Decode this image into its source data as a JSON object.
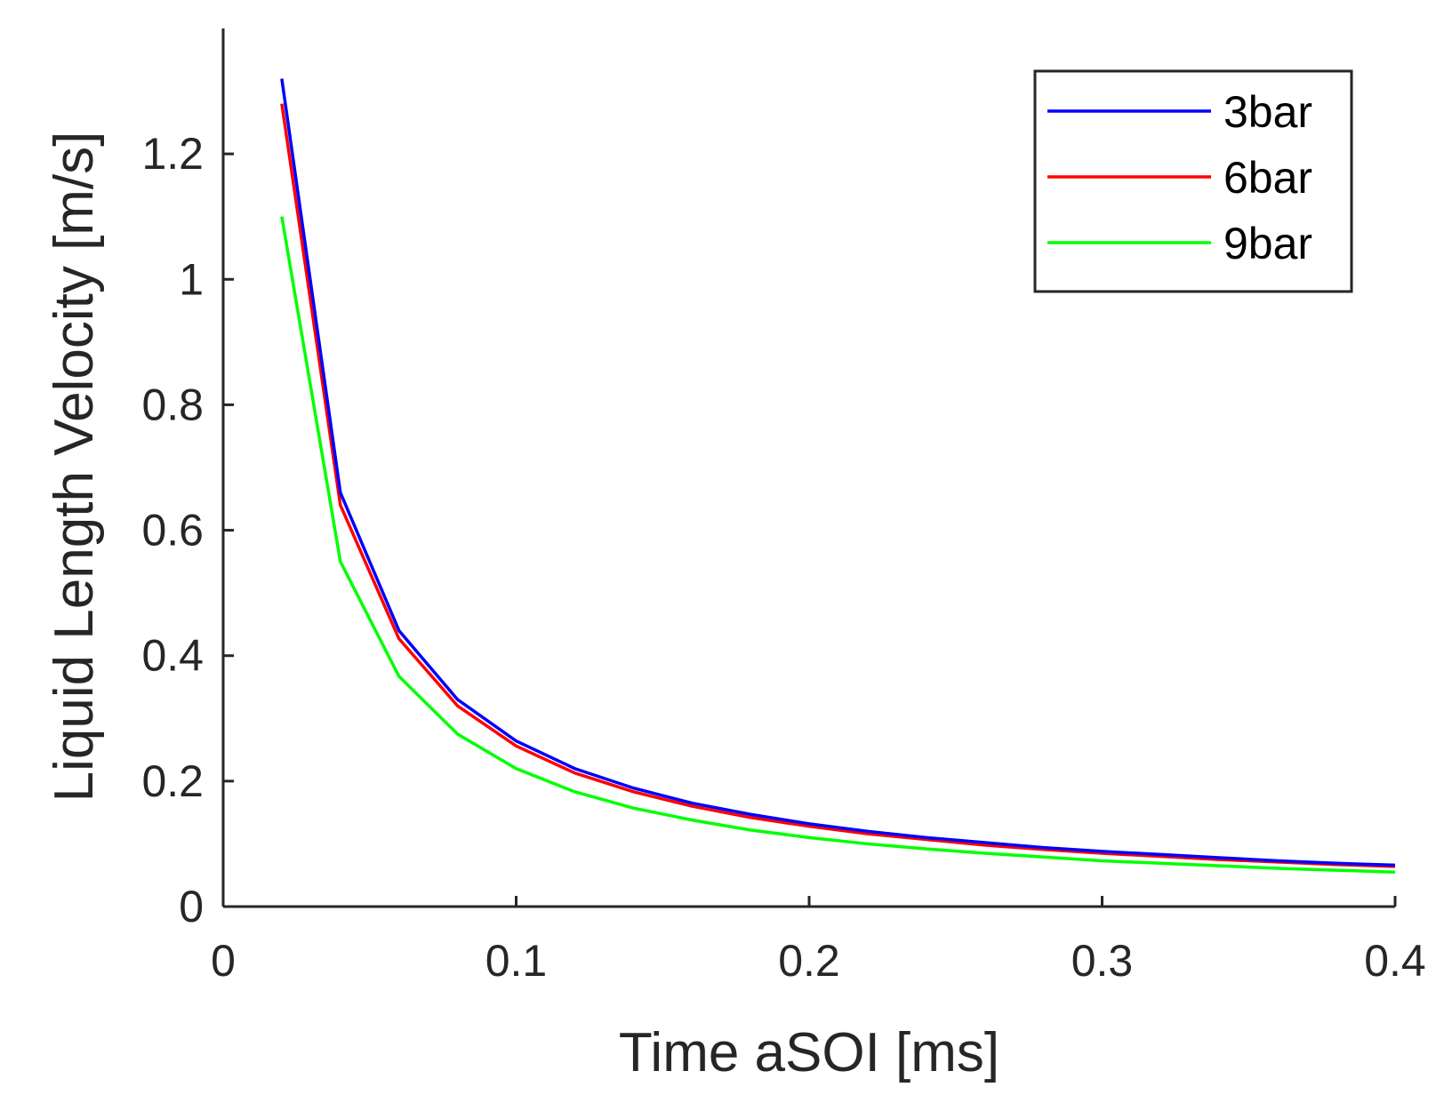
{
  "chart_data": {
    "type": "line",
    "title": "",
    "xlabel": "Time aSOI [ms]",
    "ylabel": "Liquid Length Velocity [m/s]",
    "xlim": [
      0,
      0.4
    ],
    "ylim": [
      0,
      1.4
    ],
    "xticks": [
      0,
      0.1,
      0.2,
      0.3,
      0.4
    ],
    "xtick_labels": [
      "0",
      "0.1",
      "0.2",
      "0.3",
      "0.4"
    ],
    "yticks": [
      0,
      0.2,
      0.4,
      0.6,
      0.8,
      1,
      1.2
    ],
    "ytick_labels": [
      "0",
      "0.2",
      "0.4",
      "0.6",
      "0.8",
      "1",
      "1.2"
    ],
    "grid": false,
    "legend_position": "top-right",
    "x": [
      0.02,
      0.04,
      0.06,
      0.08,
      0.1,
      0.12,
      0.14,
      0.16,
      0.18,
      0.2,
      0.22,
      0.24,
      0.26,
      0.28,
      0.3,
      0.32,
      0.34,
      0.36,
      0.38,
      0.4
    ],
    "series": [
      {
        "name": "3bar",
        "color": "#0000ff",
        "values": [
          1.32,
          0.66,
          0.44,
          0.33,
          0.264,
          0.22,
          0.189,
          0.165,
          0.147,
          0.132,
          0.12,
          0.11,
          0.102,
          0.094,
          0.088,
          0.083,
          0.078,
          0.073,
          0.069,
          0.066
        ]
      },
      {
        "name": "6bar",
        "color": "#ff0000",
        "values": [
          1.28,
          0.64,
          0.427,
          0.32,
          0.256,
          0.213,
          0.183,
          0.16,
          0.142,
          0.128,
          0.116,
          0.107,
          0.098,
          0.091,
          0.085,
          0.08,
          0.075,
          0.071,
          0.067,
          0.064
        ]
      },
      {
        "name": "9bar",
        "color": "#00ff00",
        "values": [
          1.1,
          0.55,
          0.367,
          0.275,
          0.22,
          0.183,
          0.157,
          0.138,
          0.122,
          0.11,
          0.1,
          0.092,
          0.085,
          0.079,
          0.073,
          0.069,
          0.065,
          0.061,
          0.058,
          0.055
        ]
      }
    ]
  }
}
